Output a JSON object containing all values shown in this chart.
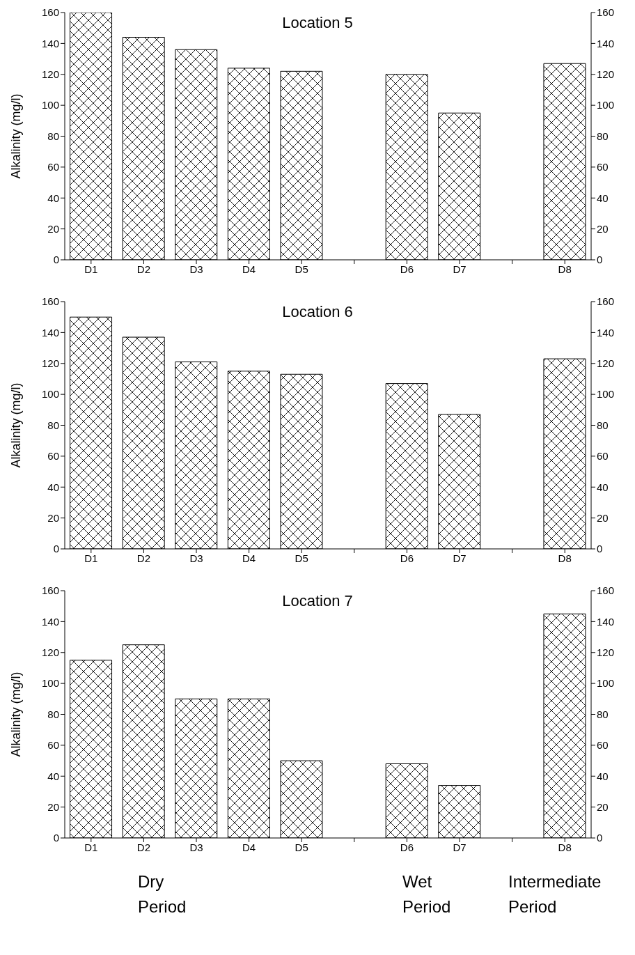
{
  "chart_data": [
    {
      "type": "bar",
      "title": "Location 5",
      "ylabel": "Alkalinity (mg/l)",
      "categories": [
        "D1",
        "D2",
        "D3",
        "D4",
        "D5",
        null,
        "D6",
        "D7",
        null,
        "D8"
      ],
      "values": [
        160,
        144,
        136,
        124,
        122,
        null,
        120,
        95,
        null,
        127
      ],
      "color": "#000000",
      "ylim": [
        0,
        160
      ],
      "yticks": [
        0,
        20,
        40,
        60,
        80,
        100,
        120,
        140,
        160
      ],
      "y2lim": [
        0,
        160
      ],
      "y2ticks": [
        0,
        20,
        40,
        60,
        80,
        100,
        120,
        140,
        160
      ]
    },
    {
      "type": "bar",
      "title": "Location 6",
      "ylabel": "Alkalinity (mg/l)",
      "categories": [
        "D1",
        "D2",
        "D3",
        "D4",
        "D5",
        null,
        "D6",
        "D7",
        null,
        "D8"
      ],
      "values": [
        150,
        137,
        121,
        115,
        113,
        null,
        107,
        87,
        null,
        123
      ],
      "color": "#000000",
      "ylim": [
        0,
        160
      ],
      "yticks": [
        0,
        20,
        40,
        60,
        80,
        100,
        120,
        140,
        160
      ],
      "y2lim": [
        0,
        160
      ],
      "y2ticks": [
        0,
        20,
        40,
        60,
        80,
        100,
        120,
        140,
        160
      ]
    },
    {
      "type": "bar",
      "title": "Location 7",
      "ylabel": "Alkalinity (mg/l)",
      "categories": [
        "D1",
        "D2",
        "D3",
        "D4",
        "D5",
        null,
        "D6",
        "D7",
        null,
        "D8"
      ],
      "values": [
        115,
        125,
        90,
        90,
        50,
        null,
        48,
        34,
        null,
        145
      ],
      "color": "#000000",
      "ylim": [
        0,
        160
      ],
      "yticks": [
        0,
        20,
        40,
        60,
        80,
        100,
        120,
        140,
        160
      ],
      "y2lim": [
        0,
        160
      ],
      "y2ticks": [
        0,
        20,
        40,
        60,
        80,
        100,
        120,
        140,
        160
      ],
      "annotations": [
        "Dry Period",
        "Wet Period",
        "Intermediate Period"
      ]
    }
  ]
}
